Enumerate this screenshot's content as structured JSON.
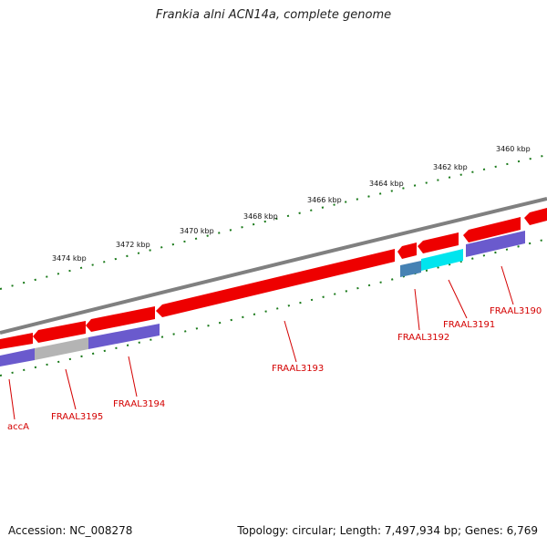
{
  "title": "Frankia alni ACN14a, complete genome",
  "footer": {
    "accession": "Accession: NC_008278",
    "summary": "Topology: circular; Length: 7,497,934 bp; Genes: 6,769"
  },
  "scale_labels": [
    "3474 kbp",
    "3472 kbp",
    "3470 kbp",
    "3468 kbp",
    "3466 kbp",
    "3464 kbp",
    "3462 kbp",
    "3460 kbp"
  ],
  "gene_labels": [
    "accA",
    "FRAAL3195",
    "FRAAL3194",
    "FRAAL3193",
    "FRAAL3192",
    "FRAAL3191",
    "FRAAL3190"
  ],
  "colors": {
    "backbone": "#808080",
    "gene_red": "#ee0000",
    "gene_blue": "#6a5acd",
    "gene_gray": "#b4b4b4",
    "gene_cyan": "#00e5ee",
    "gene_steel": "#4682b4",
    "tick_green": "#1a7a1a",
    "label_red": "#d40000"
  }
}
